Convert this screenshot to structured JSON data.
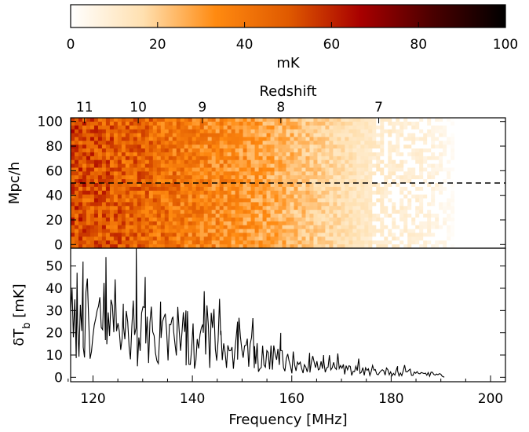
{
  "chart_data": [
    {
      "type": "colorbar",
      "label": "mK",
      "range": [
        0,
        100
      ],
      "ticks": [
        0,
        20,
        40,
        60,
        80,
        100
      ],
      "tick_labels": [
        "0",
        "20",
        "40",
        "60",
        "80",
        "100"
      ],
      "colormap": [
        "#ffffff",
        "#ffe0b0",
        "#ff8a10",
        "#e05a00",
        "#a80000",
        "#4a0000",
        "#000000"
      ]
    },
    {
      "type": "heatmap",
      "title": "",
      "top_axis_label": "Redshift",
      "top_ticks": [
        {
          "label": "11",
          "freq": 118.3
        },
        {
          "label": "10",
          "freq": 129.1
        },
        {
          "label": "9",
          "freq": 142.0
        },
        {
          "label": "8",
          "freq": 157.8
        },
        {
          "label": "7",
          "freq": 177.5
        }
      ],
      "ylabel": "Mpc/h",
      "ylim": [
        -3,
        103
      ],
      "yticks": [
        0,
        20,
        40,
        60,
        80,
        100
      ],
      "ytick_labels": [
        "0",
        "20",
        "40",
        "60",
        "80",
        "100"
      ],
      "xlim": [
        115.5,
        203
      ],
      "slice_line_y": 50,
      "profile_freq": [
        116,
        125,
        135,
        145,
        155,
        165,
        175,
        185,
        190,
        193,
        203
      ],
      "profile_mK": [
        52,
        48,
        42,
        35,
        28,
        20,
        12,
        9,
        6,
        0,
        0
      ]
    },
    {
      "type": "line",
      "xlabel": "Frequency [MHz]",
      "ylabel": "δT_b [mK]",
      "ylabel_main": "δT",
      "ylabel_sub": "b",
      "ylabel_tail": " [mK]",
      "xlim": [
        115.5,
        203
      ],
      "ylim": [
        -2,
        58
      ],
      "xticks": [
        120,
        140,
        160,
        180,
        200
      ],
      "xtick_labels": [
        "120",
        "140",
        "160",
        "180",
        "200"
      ],
      "yticks": [
        0,
        10,
        20,
        30,
        40,
        50
      ],
      "ytick_labels": [
        "0",
        "10",
        "20",
        "30",
        "40",
        "50"
      ],
      "envelope_freq": [
        116,
        120,
        125,
        130,
        135,
        140,
        145,
        150,
        155,
        160,
        165,
        170,
        175,
        180,
        185,
        190
      ],
      "envelope_mK": [
        24,
        22,
        20,
        19,
        17,
        15,
        13,
        11,
        9,
        7,
        5,
        3.5,
        2.5,
        2.5,
        2,
        1
      ],
      "x": [
        116.8,
        118,
        122.6,
        126.1,
        128.7,
        130.5,
        133.6,
        136.1,
        138.7,
        142.2,
        145.7,
        149.1,
        152.5,
        157.8,
        163.6,
        166.4,
        181.3
      ],
      "y": [
        47,
        52,
        54,
        33,
        58,
        45,
        34,
        27,
        30,
        20,
        19,
        25,
        14,
        12,
        11,
        10,
        5
      ],
      "x_end": 190.5
    }
  ]
}
